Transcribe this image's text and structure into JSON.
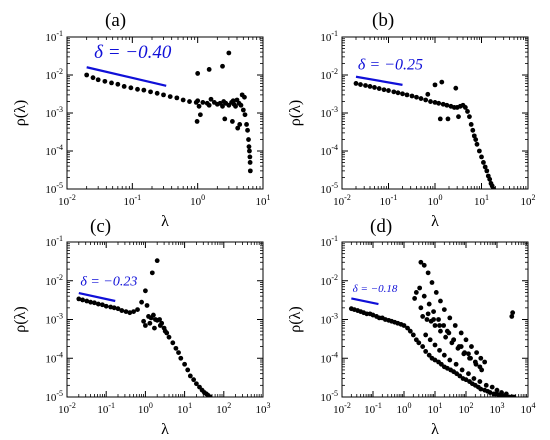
{
  "chart_data": [
    {
      "type": "scatter",
      "panel_label": "(a)",
      "xlabel": "λ",
      "ylabel": "ρ(λ)",
      "xscale": "log",
      "yscale": "log",
      "xlim": [
        0.01,
        10
      ],
      "ylim": [
        1e-05,
        0.1
      ],
      "x_ticks": [
        0.01,
        0.1,
        1,
        10
      ],
      "x_tick_labels": [
        {
          "base": "10",
          "exp": "-2"
        },
        {
          "base": "10",
          "exp": "-1"
        },
        {
          "base": "10",
          "exp": "0"
        },
        {
          "base": "10",
          "exp": "1"
        }
      ],
      "y_ticks": [
        1e-05,
        0.0001,
        0.001,
        0.01,
        0.1
      ],
      "y_tick_labels": [
        {
          "base": "10",
          "exp": "-5"
        },
        {
          "base": "10",
          "exp": "-4"
        },
        {
          "base": "10",
          "exp": "-3"
        },
        {
          "base": "10",
          "exp": "-2"
        },
        {
          "base": "10",
          "exp": "-1"
        }
      ],
      "annotation": {
        "text": "δ = −0.40",
        "color": "#1010d8",
        "line_x": [
          0.02,
          0.33
        ],
        "line_y": [
          0.016,
          0.0052
        ],
        "text_x": 0.026,
        "text_y": 0.028,
        "text_size": 19
      },
      "points": {
        "x": [
          0.02,
          0.025,
          0.03,
          0.038,
          0.048,
          0.06,
          0.075,
          0.095,
          0.12,
          0.15,
          0.19,
          0.24,
          0.3,
          0.38,
          0.48,
          0.6,
          0.75,
          0.95,
          1.0,
          1.05,
          1.2,
          1.4,
          1.5,
          1.6,
          1.8,
          2.0,
          2.2,
          2.4,
          2.5,
          2.7,
          3.0,
          3.3,
          3.5,
          3.6,
          3.8,
          4.0,
          4.3,
          4.6,
          5.0,
          5.3,
          5.6,
          5.8,
          6.0,
          6.1,
          6.2,
          6.3,
          6.35,
          6.4,
          1.0,
          1.5,
          2.4,
          3.0,
          0.98,
          1.1,
          2.6,
          3.4,
          4.1,
          4.4,
          4.8,
          5.2
        ],
        "y": [
          0.01,
          0.0085,
          0.0075,
          0.0068,
          0.0062,
          0.0057,
          0.005,
          0.0046,
          0.0042,
          0.004,
          0.0036,
          0.0033,
          0.003,
          0.0027,
          0.0025,
          0.0022,
          0.002,
          0.0019,
          0.0021,
          0.0015,
          0.0019,
          0.0018,
          0.0016,
          0.0023,
          0.0019,
          0.0017,
          0.0018,
          0.0015,
          0.002,
          0.0018,
          0.0016,
          0.0019,
          0.0021,
          0.0017,
          0.0015,
          0.0022,
          0.0018,
          0.0016,
          0.0012,
          0.0009,
          0.0005,
          0.00035,
          0.0002,
          0.00013,
          0.0001,
          7e-05,
          5e-05,
          3e-05,
          0.011,
          0.014,
          0.017,
          0.038,
          0.0006,
          0.0009,
          0.0007,
          0.0006,
          0.0004,
          0.0005,
          0.003,
          0.0026
        ]
      }
    },
    {
      "type": "scatter",
      "panel_label": "(b)",
      "xlabel": "λ",
      "ylabel": "ρ(λ)",
      "xscale": "log",
      "yscale": "log",
      "xlim": [
        0.01,
        100
      ],
      "ylim": [
        1e-05,
        0.1
      ],
      "x_ticks": [
        0.01,
        0.1,
        1,
        10,
        100
      ],
      "x_tick_labels": [
        {
          "base": "10",
          "exp": "-2"
        },
        {
          "base": "10",
          "exp": "-1"
        },
        {
          "base": "10",
          "exp": "0"
        },
        {
          "base": "10",
          "exp": "1"
        },
        {
          "base": "10",
          "exp": "2"
        }
      ],
      "y_ticks": [
        1e-05,
        0.0001,
        0.001,
        0.01,
        0.1
      ],
      "y_tick_labels": [
        {
          "base": "10",
          "exp": "-5"
        },
        {
          "base": "10",
          "exp": "-4"
        },
        {
          "base": "10",
          "exp": "-3"
        },
        {
          "base": "10",
          "exp": "-2"
        },
        {
          "base": "10",
          "exp": "-1"
        }
      ],
      "annotation": {
        "text": "δ = −0.25",
        "color": "#1010d8",
        "line_x": [
          0.02,
          0.2
        ],
        "line_y": [
          0.009,
          0.0055
        ],
        "text_x": 0.022,
        "text_y": 0.014,
        "text_size": 16
      },
      "points": {
        "x": [
          0.02,
          0.025,
          0.032,
          0.04,
          0.05,
          0.063,
          0.08,
          0.1,
          0.13,
          0.16,
          0.2,
          0.25,
          0.32,
          0.4,
          0.5,
          0.63,
          0.8,
          1.0,
          1.2,
          1.5,
          1.8,
          2.2,
          2.6,
          3.0,
          3.5,
          4.0,
          4.5,
          5.0,
          5.5,
          6.0,
          6.5,
          7.0,
          7.5,
          8.0,
          9.0,
          10,
          11,
          12,
          13,
          14,
          15,
          16,
          17,
          18,
          1.0,
          1.4,
          2.8,
          1.3,
          1.9,
          3.2,
          0.7
        ],
        "y": [
          0.006,
          0.0056,
          0.0053,
          0.005,
          0.0047,
          0.0044,
          0.0041,
          0.0039,
          0.0036,
          0.0034,
          0.0032,
          0.003,
          0.0028,
          0.0026,
          0.0024,
          0.0022,
          0.002,
          0.0019,
          0.0018,
          0.0017,
          0.0016,
          0.0015,
          0.0014,
          0.0014,
          0.0015,
          0.0016,
          0.0014,
          0.0011,
          0.0008,
          0.0005,
          0.00035,
          0.00025,
          0.0002,
          0.00015,
          0.0001,
          7e-05,
          5e-05,
          3.8e-05,
          3e-05,
          2.2e-05,
          1.8e-05,
          1.4e-05,
          1.2e-05,
          1e-05,
          0.0055,
          0.0065,
          0.0045,
          0.0007,
          0.0007,
          0.0008,
          0.0031
        ]
      }
    },
    {
      "type": "scatter",
      "panel_label": "(c)",
      "xlabel": "λ",
      "ylabel": "ρ(λ)",
      "xscale": "log",
      "yscale": "log",
      "xlim": [
        0.01,
        1000
      ],
      "ylim": [
        1e-05,
        0.1
      ],
      "x_ticks": [
        0.01,
        0.1,
        1,
        10,
        100,
        1000
      ],
      "x_tick_labels": [
        {
          "base": "10",
          "exp": "-2"
        },
        {
          "base": "10",
          "exp": "-1"
        },
        {
          "base": "10",
          "exp": "0"
        },
        {
          "base": "10",
          "exp": "1"
        },
        {
          "base": "10",
          "exp": "2"
        },
        {
          "base": "10",
          "exp": "3"
        }
      ],
      "y_ticks": [
        1e-05,
        0.0001,
        0.001,
        0.01,
        0.1
      ],
      "y_tick_labels": [
        {
          "base": "10",
          "exp": "-5"
        },
        {
          "base": "10",
          "exp": "-4"
        },
        {
          "base": "10",
          "exp": "-3"
        },
        {
          "base": "10",
          "exp": "-2"
        },
        {
          "base": "10",
          "exp": "-1"
        }
      ],
      "annotation": {
        "text": "δ = −0.23",
        "color": "#1010d8",
        "line_x": [
          0.02,
          0.17
        ],
        "line_y": [
          0.0048,
          0.003
        ],
        "text_x": 0.022,
        "text_y": 0.0075,
        "text_size": 14
      },
      "points": {
        "x": [
          0.02,
          0.025,
          0.032,
          0.04,
          0.05,
          0.063,
          0.08,
          0.1,
          0.13,
          0.16,
          0.2,
          0.25,
          0.32,
          0.4,
          0.5,
          0.63,
          0.8,
          1.0,
          1.1,
          1.2,
          1.4,
          1.6,
          1.8,
          2.0,
          2.3,
          2.6,
          3.0,
          3.5,
          4.0,
          5.0,
          6.0,
          7.0,
          8.0,
          10,
          12,
          14,
          17,
          20,
          24,
          28,
          32,
          36,
          40,
          45,
          1.5,
          2.0,
          1.0,
          0.9,
          1.3,
          1.7,
          2.4,
          3.2
        ],
        "y": [
          0.0034,
          0.0032,
          0.003,
          0.0028,
          0.0027,
          0.0025,
          0.0024,
          0.0022,
          0.0021,
          0.002,
          0.0019,
          0.0017,
          0.0016,
          0.0015,
          0.0016,
          0.0018,
          0.0028,
          0.0055,
          0.0023,
          0.0012,
          0.0011,
          0.0013,
          0.001,
          0.00095,
          0.001,
          0.0008,
          0.0006,
          0.00045,
          0.00035,
          0.00025,
          0.00018,
          0.00014,
          0.0001,
          7e-05,
          5e-05,
          3.5e-05,
          2.8e-05,
          2.2e-05,
          1.8e-05,
          1.5e-05,
          1.3e-05,
          1.2e-05,
          1.1e-05,
          1e-05,
          0.016,
          0.033,
          0.0007,
          0.0009,
          0.0008,
          0.0006,
          0.0007,
          0.0005
        ]
      }
    },
    {
      "type": "scatter",
      "panel_label": "(d)",
      "xlabel": "λ",
      "ylabel": "ρ(λ)",
      "xscale": "log",
      "yscale": "log",
      "xlim": [
        0.01,
        10000
      ],
      "ylim": [
        1e-05,
        0.1
      ],
      "x_ticks": [
        0.01,
        0.1,
        1,
        10,
        100,
        1000,
        10000
      ],
      "x_tick_labels": [
        {
          "base": "10",
          "exp": "-2"
        },
        {
          "base": "10",
          "exp": "-1"
        },
        {
          "base": "10",
          "exp": "0"
        },
        {
          "base": "10",
          "exp": "1"
        },
        {
          "base": "10",
          "exp": "2"
        },
        {
          "base": "10",
          "exp": "3"
        },
        {
          "base": "10",
          "exp": "4"
        }
      ],
      "y_ticks": [
        1e-05,
        0.0001,
        0.001,
        0.01,
        0.1
      ],
      "y_tick_labels": [
        {
          "base": "10",
          "exp": "-5"
        },
        {
          "base": "10",
          "exp": "-4"
        },
        {
          "base": "10",
          "exp": "-3"
        },
        {
          "base": "10",
          "exp": "-2"
        },
        {
          "base": "10",
          "exp": "-1"
        }
      ],
      "annotation": {
        "text": "δ = −0.18",
        "color": "#1010d8",
        "line_x": [
          0.02,
          0.15
        ],
        "line_y": [
          0.0035,
          0.0025
        ],
        "text_x": 0.022,
        "text_y": 0.0052,
        "text_size": 11
      },
      "points": {
        "x": [
          0.02,
          0.025,
          0.032,
          0.04,
          0.05,
          0.063,
          0.08,
          0.1,
          0.13,
          0.16,
          0.2,
          0.25,
          0.32,
          0.4,
          0.5,
          0.63,
          0.8,
          1.0,
          1.3,
          1.6,
          2.0,
          2.5,
          3.0,
          4.0,
          5.0,
          6.5,
          8.0,
          10,
          13,
          16,
          20,
          25,
          32,
          40,
          50,
          63,
          80,
          100,
          130,
          160,
          200,
          250,
          300,
          400,
          500,
          600,
          800,
          1000,
          1200,
          1500,
          2000,
          2500,
          3000,
          3500,
          3.5,
          4.5,
          6.0,
          8.0,
          11,
          15,
          20,
          30,
          45,
          70,
          100,
          150,
          220,
          300,
          400,
          2.5,
          3.2,
          4.5,
          6.5,
          9.0,
          13,
          19,
          28,
          40,
          60,
          90,
          140,
          200,
          280,
          4.0,
          5.5,
          7.5,
          10,
          15,
          22,
          35,
          55,
          85,
          130,
          210,
          320,
          5.0,
          7.0,
          10,
          14,
          20,
          30,
          48,
          75,
          120,
          180,
          280,
          450,
          700,
          1000,
          1400,
          2000,
          3000,
          3000,
          3200,
          2.2,
          3.5,
          6,
          9,
          14,
          25,
          40,
          70,
          120
        ],
        "y": [
          0.0019,
          0.0018,
          0.0017,
          0.0016,
          0.0015,
          0.0014,
          0.0014,
          0.0013,
          0.0012,
          0.0011,
          0.0011,
          0.001,
          0.00095,
          0.0009,
          0.00085,
          0.0008,
          0.00075,
          0.0007,
          0.0006,
          0.0005,
          0.0004,
          0.0003,
          0.00025,
          0.0002,
          0.00015,
          0.00012,
          0.0001,
          9e-05,
          8e-05,
          7e-05,
          6e-05,
          5.5e-05,
          5e-05,
          4.5e-05,
          4e-05,
          3.5e-05,
          3e-05,
          2.8e-05,
          2.5e-05,
          2.2e-05,
          2e-05,
          1.8e-05,
          1.6e-05,
          1.5e-05,
          1.4e-05,
          1.3e-05,
          1.2e-05,
          1.2e-05,
          1.1e-05,
          1.1e-05,
          1e-05,
          1e-05,
          1e-05,
          1e-05,
          0.03,
          0.025,
          0.016,
          0.009,
          0.005,
          0.003,
          0.0018,
          0.0011,
          0.0007,
          0.00045,
          0.0003,
          0.0002,
          0.00014,
          0.0001,
          8e-05,
          0.005,
          0.0065,
          0.004,
          0.0025,
          0.0016,
          0.001,
          0.0007,
          0.00045,
          0.0003,
          0.0002,
          0.00014,
          0.0001,
          8e-05,
          6e-05,
          0.0012,
          0.001,
          0.0009,
          0.0007,
          0.0005,
          0.00035,
          0.00025,
          0.00018,
          0.00013,
          0.0001,
          7e-05,
          5e-05,
          0.0004,
          0.0003,
          0.00022,
          0.00016,
          0.00012,
          9e-05,
          7e-05,
          5e-05,
          4e-05,
          3e-05,
          2.5e-05,
          2e-05,
          1.8e-05,
          1.5e-05,
          1.3e-05,
          1.2e-05,
          1e-05,
          0.0012,
          0.0015,
          0.0035,
          0.002,
          0.0014,
          0.001,
          0.0007,
          0.0005,
          0.0003,
          0.0002,
          0.00013
        ]
      }
    }
  ]
}
